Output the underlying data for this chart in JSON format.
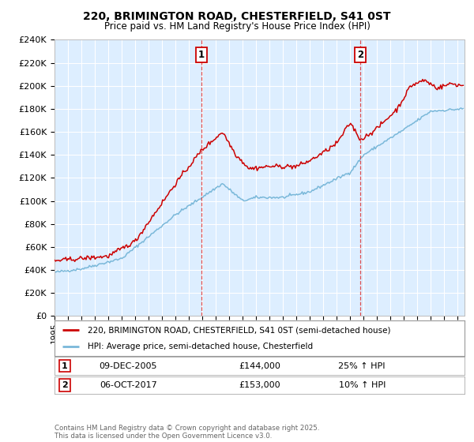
{
  "title": "220, BRIMINGTON ROAD, CHESTERFIELD, S41 0ST",
  "subtitle": "Price paid vs. HM Land Registry's House Price Index (HPI)",
  "plot_bg_color": "#ddeeff",
  "fig_bg_color": "#ffffff",
  "ylim": [
    0,
    240000
  ],
  "yticks": [
    0,
    20000,
    40000,
    60000,
    80000,
    100000,
    120000,
    140000,
    160000,
    180000,
    200000,
    220000,
    240000
  ],
  "ytick_labels": [
    "£0",
    "£20K",
    "£40K",
    "£60K",
    "£80K",
    "£100K",
    "£120K",
    "£140K",
    "£160K",
    "£180K",
    "£200K",
    "£220K",
    "£240K"
  ],
  "xlim_start": 1995.0,
  "xlim_end": 2025.5,
  "marker1_x": 2005.94,
  "marker1_label": "1",
  "marker1_date": "09-DEC-2005",
  "marker1_price": "£144,000",
  "marker1_hpi": "25% ↑ HPI",
  "marker2_x": 2017.77,
  "marker2_label": "2",
  "marker2_date": "06-OCT-2017",
  "marker2_price": "£153,000",
  "marker2_hpi": "10% ↑ HPI",
  "line1_color": "#cc0000",
  "line2_color": "#7ab8d9",
  "legend1_label": "220, BRIMINGTON ROAD, CHESTERFIELD, S41 0ST (semi-detached house)",
  "legend2_label": "HPI: Average price, semi-detached house, Chesterfield",
  "copyright": "Contains HM Land Registry data © Crown copyright and database right 2025.\nThis data is licensed under the Open Government Licence v3.0.",
  "hpi_keypoints": [
    [
      1995.0,
      38000
    ],
    [
      1997.0,
      41000
    ],
    [
      2000.0,
      50000
    ],
    [
      2004.0,
      88000
    ],
    [
      2007.5,
      115000
    ],
    [
      2009.0,
      100000
    ],
    [
      2010.0,
      103000
    ],
    [
      2012.0,
      103000
    ],
    [
      2014.0,
      108000
    ],
    [
      2017.0,
      125000
    ],
    [
      2018.0,
      140000
    ],
    [
      2021.0,
      162000
    ],
    [
      2023.0,
      178000
    ],
    [
      2025.4,
      180000
    ]
  ],
  "prop_keypoints": [
    [
      1995.0,
      48000
    ],
    [
      1997.0,
      50000
    ],
    [
      1999.0,
      52000
    ],
    [
      2001.0,
      65000
    ],
    [
      2004.0,
      115000
    ],
    [
      2005.94,
      144000
    ],
    [
      2007.5,
      160000
    ],
    [
      2008.5,
      140000
    ],
    [
      2009.5,
      128000
    ],
    [
      2011.0,
      130000
    ],
    [
      2013.0,
      130000
    ],
    [
      2014.0,
      135000
    ],
    [
      2015.0,
      142000
    ],
    [
      2016.0,
      150000
    ],
    [
      2017.0,
      168000
    ],
    [
      2017.77,
      153000
    ],
    [
      2019.0,
      163000
    ],
    [
      2020.5,
      180000
    ],
    [
      2021.5,
      200000
    ],
    [
      2022.5,
      205000
    ],
    [
      2023.5,
      198000
    ],
    [
      2024.5,
      202000
    ],
    [
      2025.4,
      200000
    ]
  ]
}
